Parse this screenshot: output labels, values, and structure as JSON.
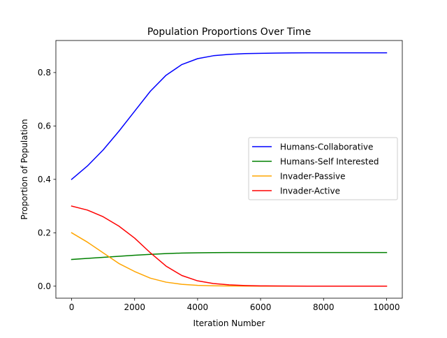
{
  "chart_data": {
    "type": "line",
    "title": "Population Proportions Over Time",
    "xlabel": "Iteration Number",
    "ylabel": "Proportion of Population",
    "xlim": [
      -500,
      10500
    ],
    "ylim": [
      -0.045,
      0.92
    ],
    "x_ticks": [
      0,
      2000,
      4000,
      6000,
      8000,
      10000
    ],
    "x_tick_labels": [
      "0",
      "2000",
      "4000",
      "6000",
      "8000",
      "10000"
    ],
    "y_ticks": [
      0.0,
      0.2,
      0.4,
      0.6,
      0.8
    ],
    "y_tick_labels": [
      "0.0",
      "0.2",
      "0.4",
      "0.6",
      "0.8"
    ],
    "grid": false,
    "legend_position": "center-right",
    "x": [
      0,
      500,
      1000,
      1500,
      2000,
      2500,
      3000,
      3500,
      4000,
      4500,
      5000,
      5500,
      6000,
      6500,
      7000,
      7500,
      8000,
      8500,
      9000,
      9500,
      10000
    ],
    "series": [
      {
        "name": "Humans-Collaborative",
        "color": "#0000ff",
        "values": [
          0.4,
          0.45,
          0.51,
          0.58,
          0.655,
          0.73,
          0.79,
          0.83,
          0.852,
          0.863,
          0.868,
          0.871,
          0.872,
          0.873,
          0.8735,
          0.874,
          0.874,
          0.874,
          0.874,
          0.874,
          0.874
        ]
      },
      {
        "name": "Humans-Self Interested",
        "color": "#008000",
        "values": [
          0.1,
          0.104,
          0.108,
          0.112,
          0.116,
          0.119,
          0.122,
          0.124,
          0.125,
          0.1255,
          0.126,
          0.126,
          0.126,
          0.126,
          0.126,
          0.126,
          0.126,
          0.126,
          0.126,
          0.126,
          0.126
        ]
      },
      {
        "name": "Invader-Passive",
        "color": "#ffa500",
        "values": [
          0.2,
          0.165,
          0.125,
          0.085,
          0.055,
          0.03,
          0.015,
          0.007,
          0.003,
          0.0015,
          0.0007,
          0.0003,
          0.0001,
          0,
          0,
          0,
          0,
          0,
          0,
          0,
          0
        ]
      },
      {
        "name": "Invader-Active",
        "color": "#ff0000",
        "values": [
          0.3,
          0.285,
          0.26,
          0.225,
          0.18,
          0.125,
          0.075,
          0.04,
          0.02,
          0.01,
          0.005,
          0.0025,
          0.0012,
          0.0006,
          0.0003,
          0.0002,
          0.0001,
          0,
          0,
          0,
          0
        ]
      }
    ]
  }
}
